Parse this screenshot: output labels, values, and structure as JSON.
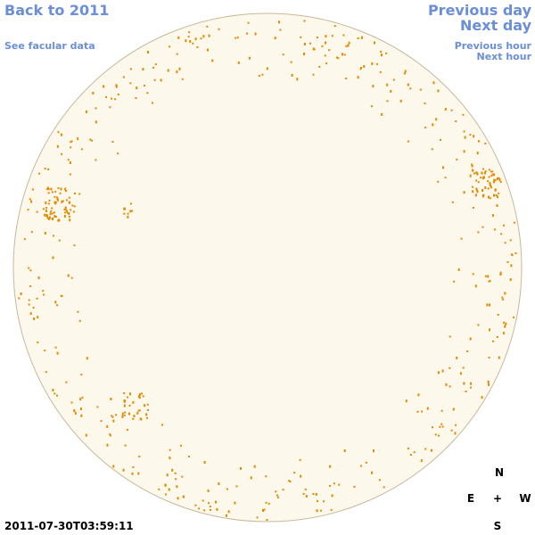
{
  "links": {
    "back": "Back to 2011",
    "facular": "See facular data",
    "previous_day": "Previous day",
    "next_day": "Next day",
    "previous_hour": "Previous hour",
    "next_hour": "Next hour"
  },
  "timestamp": "2011-07-30T03:59:11",
  "compass": {
    "north": "N",
    "east": "E",
    "center": "+",
    "west": "W",
    "south": "S"
  }
}
